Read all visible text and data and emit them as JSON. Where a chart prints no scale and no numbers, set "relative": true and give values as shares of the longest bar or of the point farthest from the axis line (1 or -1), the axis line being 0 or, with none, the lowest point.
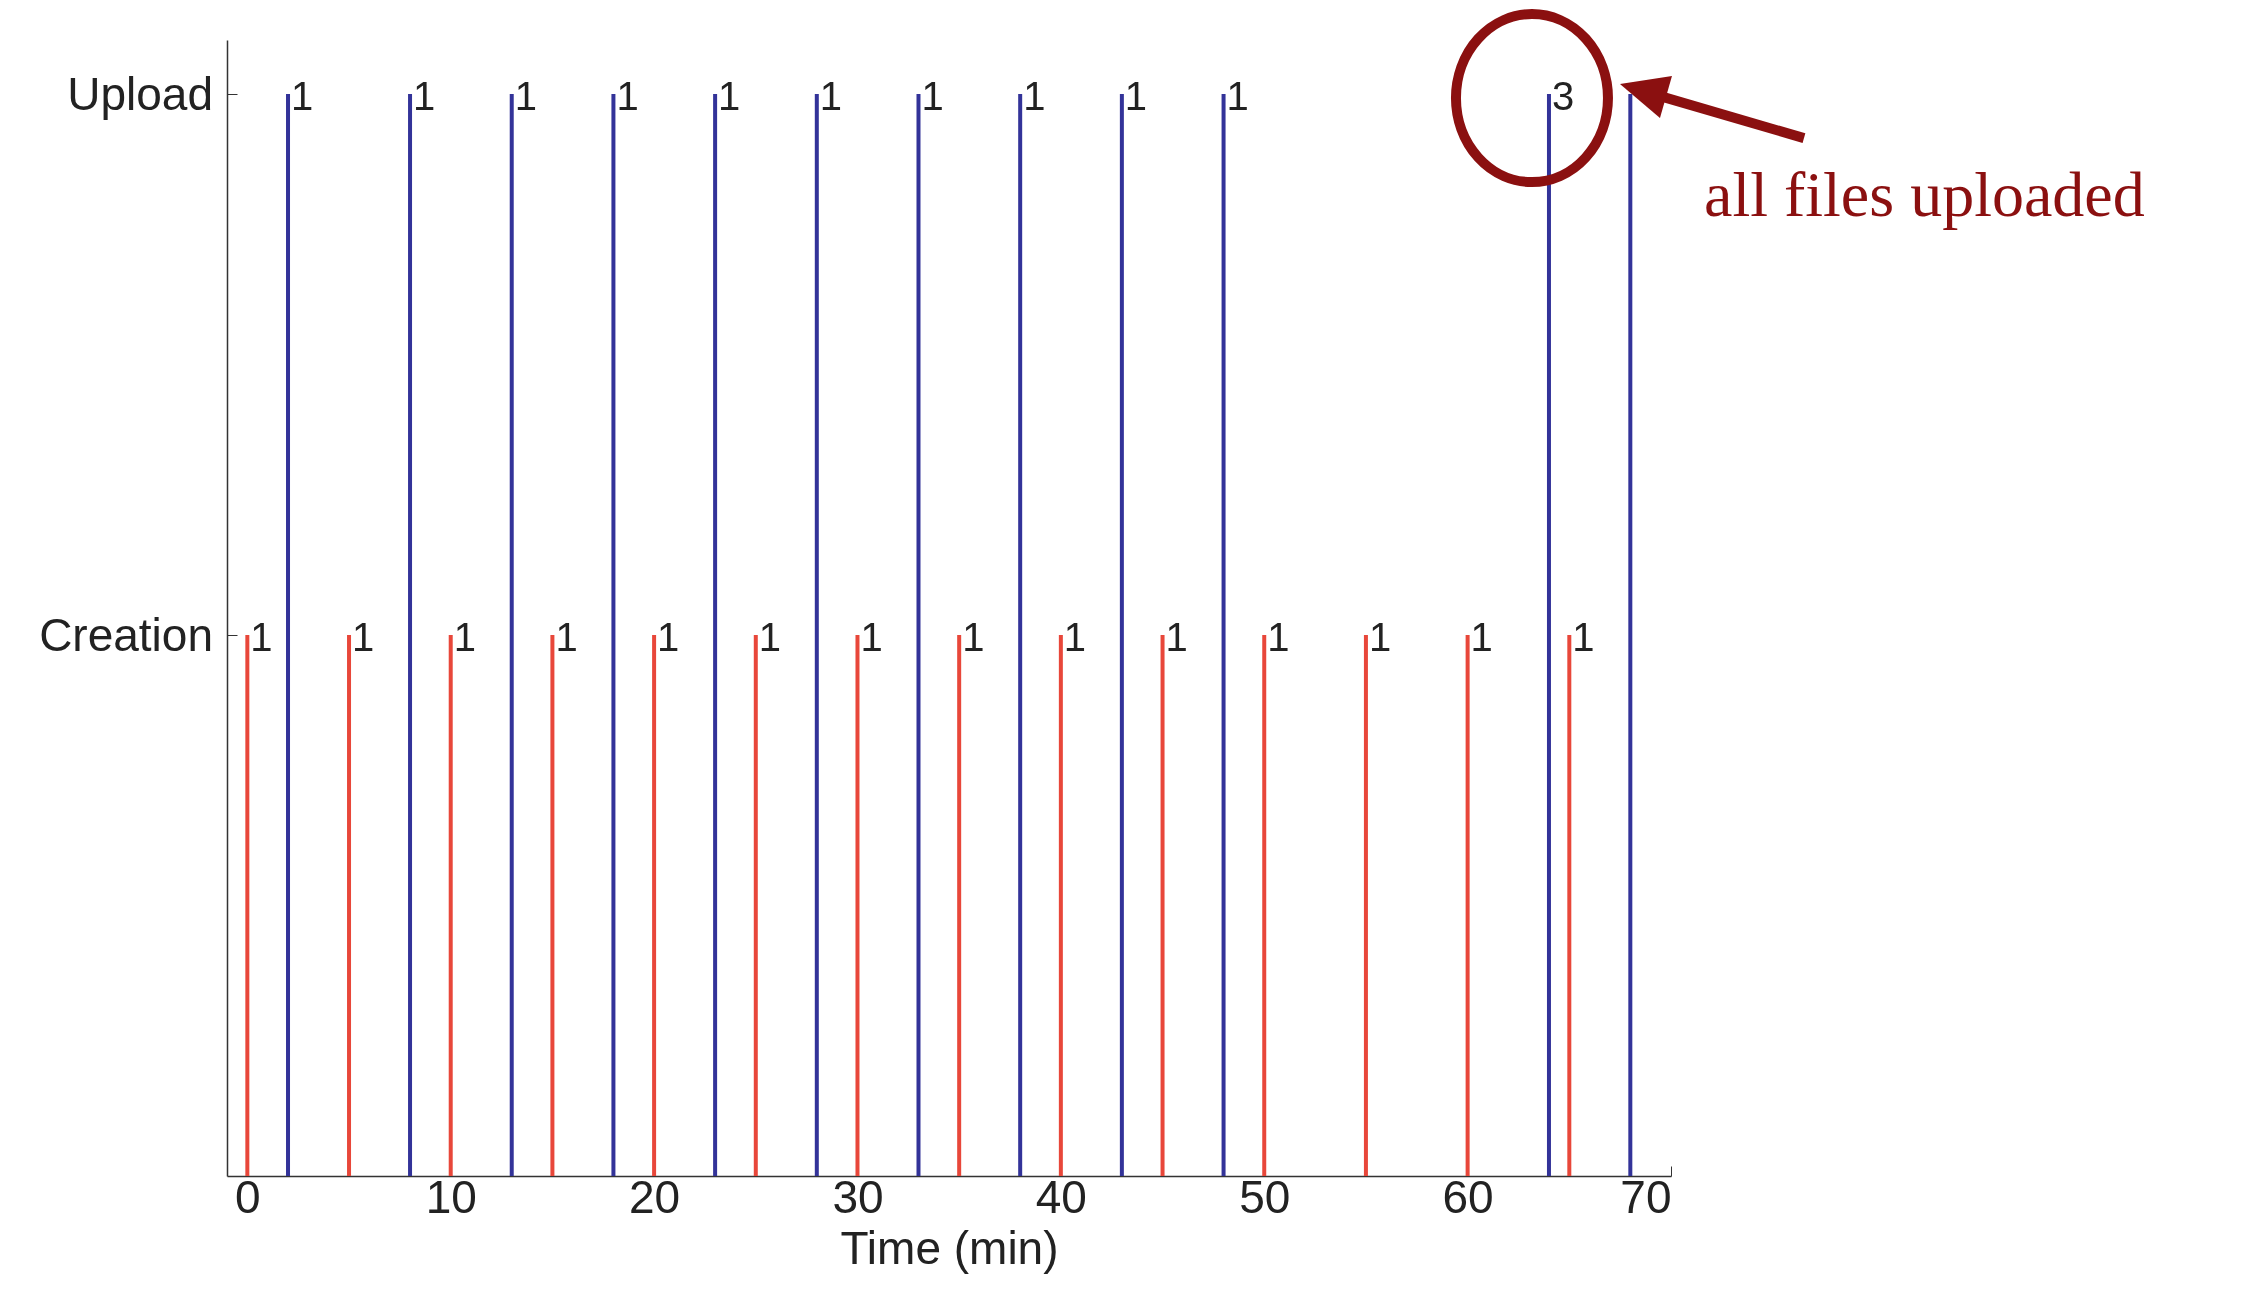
{
  "chart_data": {
    "type": "bar",
    "relative": true,
    "xlabel": "Time (min)",
    "xlim": [
      -1,
      70
    ],
    "xticks": [
      0,
      10,
      20,
      30,
      40,
      50,
      60,
      70
    ],
    "series": [
      {
        "name": "Creation",
        "color": "#e8473a",
        "x": [
          0,
          5,
          10,
          15,
          20,
          25,
          30,
          35,
          40,
          45,
          50,
          55,
          60,
          65
        ],
        "values": [
          0.5,
          0.5,
          0.5,
          0.5,
          0.5,
          0.5,
          0.5,
          0.5,
          0.5,
          0.5,
          0.5,
          0.5,
          0.5,
          0.5
        ]
      },
      {
        "name": "Upload",
        "color": "#333399",
        "x": [
          2,
          8,
          13,
          18,
          23,
          28,
          33,
          38,
          43,
          48,
          64,
          68
        ],
        "values": [
          1,
          1,
          1,
          1,
          1,
          1,
          1,
          1,
          1,
          1,
          1,
          1
        ]
      }
    ],
    "annotations": [
      {
        "text": "all files uploaded",
        "x": 64,
        "y": 1
      },
      {
        "text": "1",
        "x": 0,
        "y": 0.5
      },
      {
        "text": "1",
        "x": 5,
        "y": 0.5
      },
      {
        "text": "1",
        "x": 10,
        "y": 0.5
      },
      {
        "text": "1",
        "x": 15,
        "y": 0.5
      },
      {
        "text": "1",
        "x": 20,
        "y": 0.5
      },
      {
        "text": "1",
        "x": 25,
        "y": 0.5
      },
      {
        "text": "1",
        "x": 30,
        "y": 0.5
      },
      {
        "text": "1",
        "x": 35,
        "y": 0.5
      },
      {
        "text": "1",
        "x": 40,
        "y": 0.5
      },
      {
        "text": "1",
        "x": 45,
        "y": 0.5
      },
      {
        "text": "1",
        "x": 50,
        "y": 0.5
      },
      {
        "text": "1",
        "x": 55,
        "y": 0.5
      },
      {
        "text": "1",
        "x": 60,
        "y": 0.5
      },
      {
        "text": "1",
        "x": 65,
        "y": 0.5
      },
      {
        "text": "1",
        "x": 2,
        "y": 1
      },
      {
        "text": "1",
        "x": 8,
        "y": 1
      },
      {
        "text": "1",
        "x": 13,
        "y": 1
      },
      {
        "text": "1",
        "x": 18,
        "y": 1
      },
      {
        "text": "1",
        "x": 23,
        "y": 1
      },
      {
        "text": "1",
        "x": 28,
        "y": 1
      },
      {
        "text": "1",
        "x": 33,
        "y": 1
      },
      {
        "text": "1",
        "x": 38,
        "y": 1
      },
      {
        "text": "1",
        "x": 43,
        "y": 1
      },
      {
        "text": "1",
        "x": 48,
        "y": 1
      },
      {
        "text": "3",
        "x": 64,
        "y": 1
      }
    ],
    "grid": false,
    "legend": false
  }
}
